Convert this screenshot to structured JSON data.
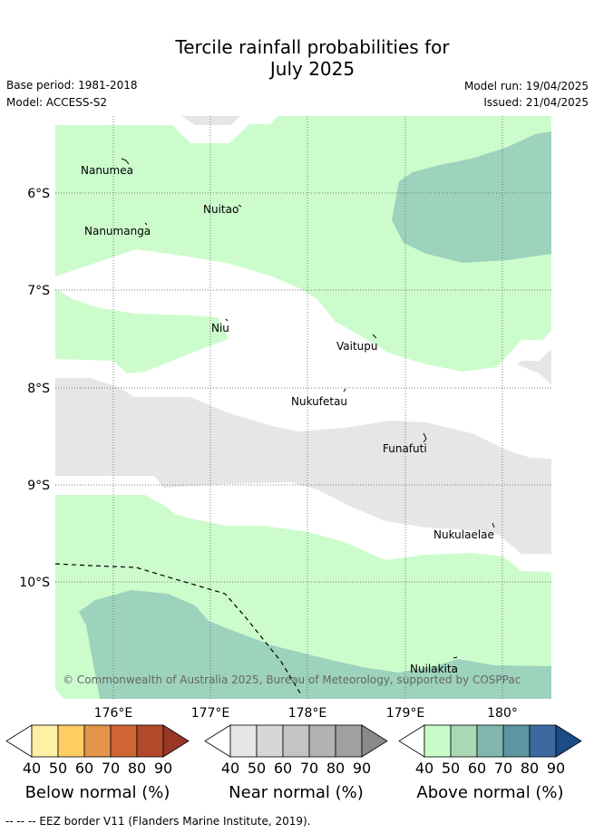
{
  "title_line1": "Tercile rainfall probabilities for",
  "title_line2": "July 2025",
  "base_period": "Base period: 1981-2018",
  "model": "Model: ACCESS-S2",
  "model_run": "Model run: 19/04/2025",
  "issued": "Issued: 21/04/2025",
  "lat_labels": [
    "6°S",
    "7°S",
    "8°S",
    "9°S",
    "10°S"
  ],
  "lon_labels": [
    "176°E",
    "177°E",
    "178°E",
    "179°E",
    "180°"
  ],
  "islands": [
    "Nanumea",
    "Nuitao",
    "Nanumanga",
    "Niu",
    "Vaitupu",
    "Nukufetau",
    "Funafuti",
    "Nukulaelae",
    "Nuilakita"
  ],
  "copyright": "© Commonwealth of Australia 2025, Bureau of Meteorology, supported by COSPPac",
  "colorbars": [
    {
      "title": "Below normal (%)",
      "ticks": [
        "40",
        "50",
        "60",
        "70",
        "80",
        "90"
      ],
      "colors": [
        "#ffffff",
        "#fff0a6",
        "#ffcd62",
        "#e4944a",
        "#cf6533",
        "#b24a2a",
        "#983726"
      ]
    },
    {
      "title": "Near normal (%)",
      "ticks": [
        "40",
        "50",
        "60",
        "70",
        "80",
        "90"
      ],
      "colors": [
        "#ffffff",
        "#e6e6e6",
        "#d6d6d6",
        "#c4c4c4",
        "#b2b2b2",
        "#a0a0a0",
        "#8a8a8a"
      ]
    },
    {
      "title": "Above normal (%)",
      "ticks": [
        "40",
        "50",
        "60",
        "70",
        "80",
        "90"
      ],
      "colors": [
        "#ffffff",
        "#c8fcc8",
        "#a8d8b4",
        "#80b8b0",
        "#5c96a0",
        "#3a6aa0",
        "#1c4c86"
      ]
    }
  ],
  "footer": "--  --  -- EEZ border V11 (Flanders Marine Institute, 2019)."
}
